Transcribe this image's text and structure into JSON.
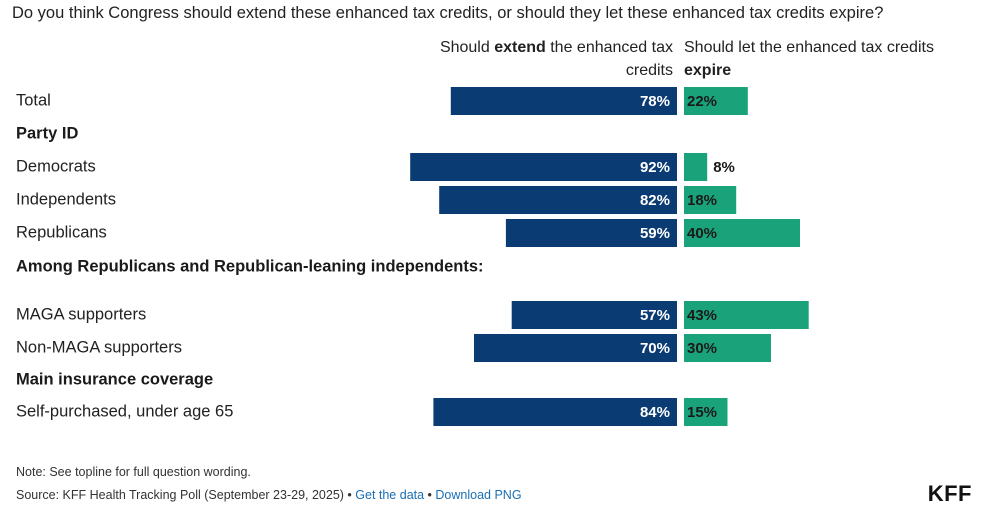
{
  "chart_data": {
    "type": "bar",
    "title": "Do you think Congress should extend these enhanced tax credits, or should they let these enhanced tax credits expire?",
    "series": [
      {
        "name": "Should extend the enhanced tax credits",
        "color": "#0b3b73"
      },
      {
        "name": "Should let the enhanced tax credits expire",
        "color": "#1aa37a"
      }
    ],
    "rows": [
      {
        "kind": "data",
        "label": "Total",
        "extend": 78,
        "expire": 22
      },
      {
        "kind": "section",
        "label": "Party ID"
      },
      {
        "kind": "data",
        "label": "Democrats",
        "extend": 92,
        "expire": 8
      },
      {
        "kind": "data",
        "label": "Independents",
        "extend": 82,
        "expire": 18
      },
      {
        "kind": "data",
        "label": "Republicans",
        "extend": 59,
        "expire": 40
      },
      {
        "kind": "section",
        "label": "Among Republicans and Republican-leaning independents:"
      },
      {
        "kind": "data",
        "label": "MAGA supporters",
        "extend": 57,
        "expire": 43
      },
      {
        "kind": "data",
        "label": "Non-MAGA supporters",
        "extend": 70,
        "expire": 30
      },
      {
        "kind": "section",
        "label": "Main insurance coverage"
      },
      {
        "kind": "data",
        "label": "Self-purchased, under age 65",
        "extend": 84,
        "expire": 15
      }
    ],
    "value_suffix": "%"
  },
  "header": {
    "extend_pre": "Should ",
    "extend_bold": "extend",
    "extend_post": " the enhanced tax credits",
    "expire_pre": "Should let the enhanced tax credits ",
    "expire_bold": "expire"
  },
  "footer": {
    "note": "Note: See topline for full question wording.",
    "source": "Source: KFF Health Tracking Poll (September 23-29, 2025)",
    "sep1": " • ",
    "get_data": "Get the data",
    "sep2": " • ",
    "download": "Download PNG",
    "logo": "KFF"
  }
}
